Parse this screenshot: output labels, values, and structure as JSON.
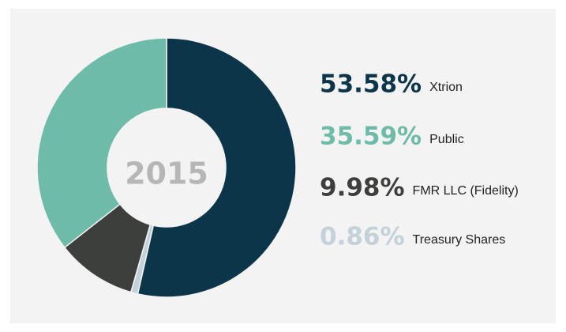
{
  "chart_data": {
    "type": "donut",
    "center_label": "2015",
    "categories": [
      "Xtrion",
      "Public",
      "FMR LLC (Fidelity)",
      "Treasury Shares"
    ],
    "values": [
      53.58,
      35.59,
      9.98,
      0.86
    ],
    "value_labels": [
      "53.58%",
      "35.59%",
      "9.98%",
      "0.86%"
    ],
    "colors": [
      "#0c3549",
      "#6dbba8",
      "#3d3f3c",
      "#c3d1d9"
    ]
  }
}
